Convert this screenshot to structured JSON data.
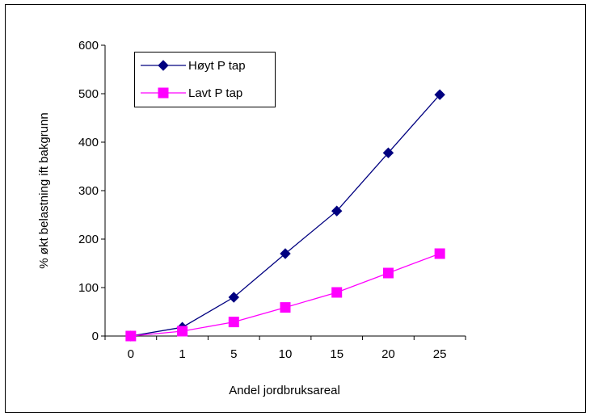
{
  "chart_data": {
    "type": "line",
    "title": "",
    "xlabel": "Andel jordbruksareal",
    "ylabel": "% økt belastning ift bakgrunn",
    "categories": [
      "0",
      "1",
      "5",
      "10",
      "15",
      "20",
      "25"
    ],
    "ylim": [
      0,
      600
    ],
    "yticks": [
      0,
      100,
      200,
      300,
      400,
      500,
      600
    ],
    "grid": false,
    "legend_position": "top-left",
    "series": [
      {
        "name": "Høyt P tap",
        "values": [
          0,
          18,
          80,
          170,
          258,
          378,
          498
        ],
        "color": "#000080",
        "marker": "diamond"
      },
      {
        "name": "Lavt P tap",
        "values": [
          0,
          10,
          29,
          59,
          90,
          130,
          170
        ],
        "color": "#FF00FF",
        "marker": "square"
      }
    ]
  }
}
